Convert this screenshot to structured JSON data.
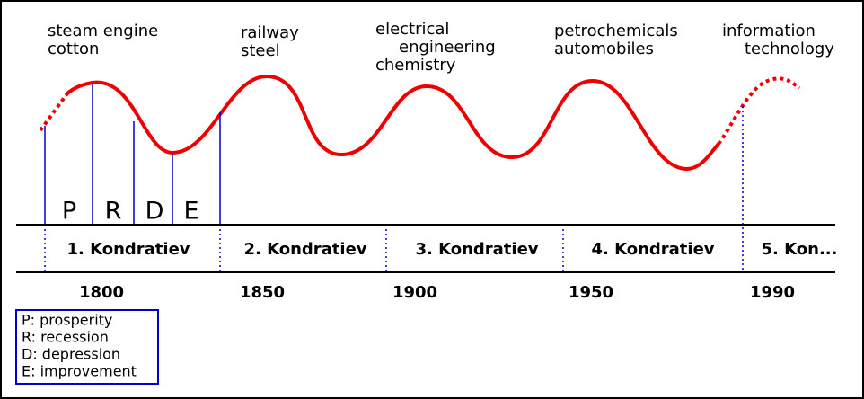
{
  "technologies": [
    {
      "lines": [
        "steam engine",
        "cotton"
      ]
    },
    {
      "lines": [
        "railway",
        "steel"
      ]
    },
    {
      "lines": [
        "electrical",
        "engineering",
        "chemistry"
      ]
    },
    {
      "lines": [
        "petrochemicals",
        "automobiles"
      ]
    },
    {
      "lines": [
        "information",
        "technology"
      ]
    }
  ],
  "phases": [
    "P",
    "R",
    "D",
    "E"
  ],
  "waves": [
    "1. Kondratiev",
    "2. Kondratiev",
    "3. Kondratiev",
    "4. Kondratiev",
    "5. Kon..."
  ],
  "years": [
    "1800",
    "1850",
    "1900",
    "1950",
    "1990"
  ],
  "legend": [
    "P: prosperity",
    "R: recession",
    "D: depression",
    "E: improvement"
  ]
}
